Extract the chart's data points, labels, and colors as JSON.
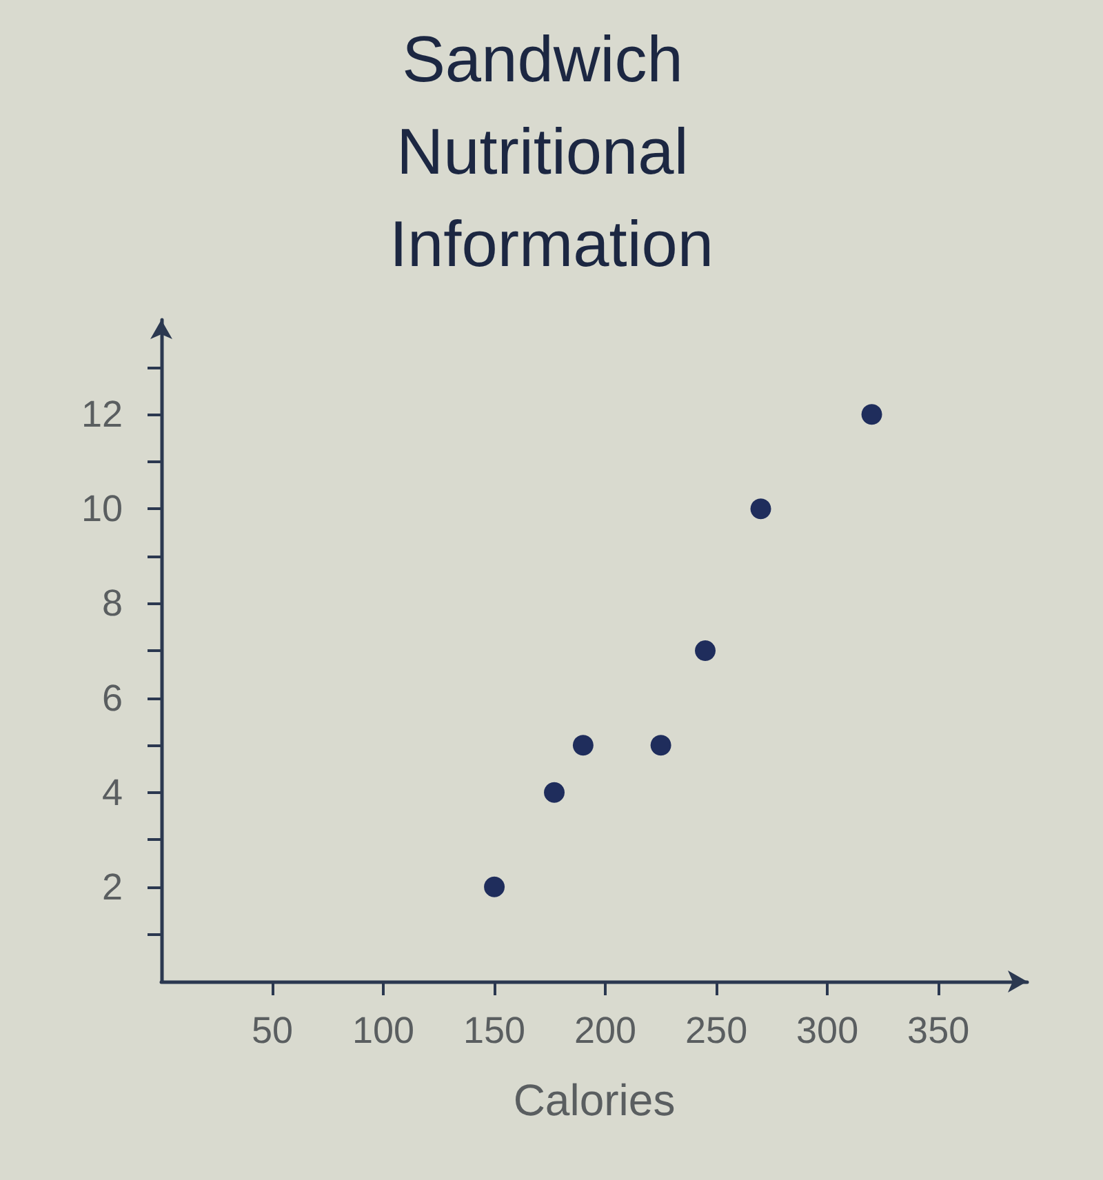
{
  "chart_data": {
    "type": "scatter",
    "title": "Sandwich Nutritional Information",
    "xlabel": "Calories",
    "x": [
      150,
      177,
      190,
      225,
      245,
      270,
      320
    ],
    "values": [
      2,
      4,
      5,
      5,
      7,
      10,
      12
    ],
    "color": "#1f2d5c",
    "xlim": [
      0,
      390
    ],
    "ylim": [
      0,
      14
    ],
    "xticks": [
      50,
      100,
      150,
      200,
      250,
      300,
      350
    ],
    "yticks": [
      {
        "value": 1,
        "label": null
      },
      2,
      {
        "value": 3,
        "label": null
      },
      4,
      {
        "value": 5,
        "label": null
      },
      6,
      {
        "value": 7,
        "label": null
      },
      8,
      {
        "value": 9,
        "label": null
      },
      10,
      {
        "value": 11,
        "label": null
      },
      12,
      {
        "value": 13,
        "label": null
      }
    ],
    "grid": false,
    "marker": "circle"
  }
}
